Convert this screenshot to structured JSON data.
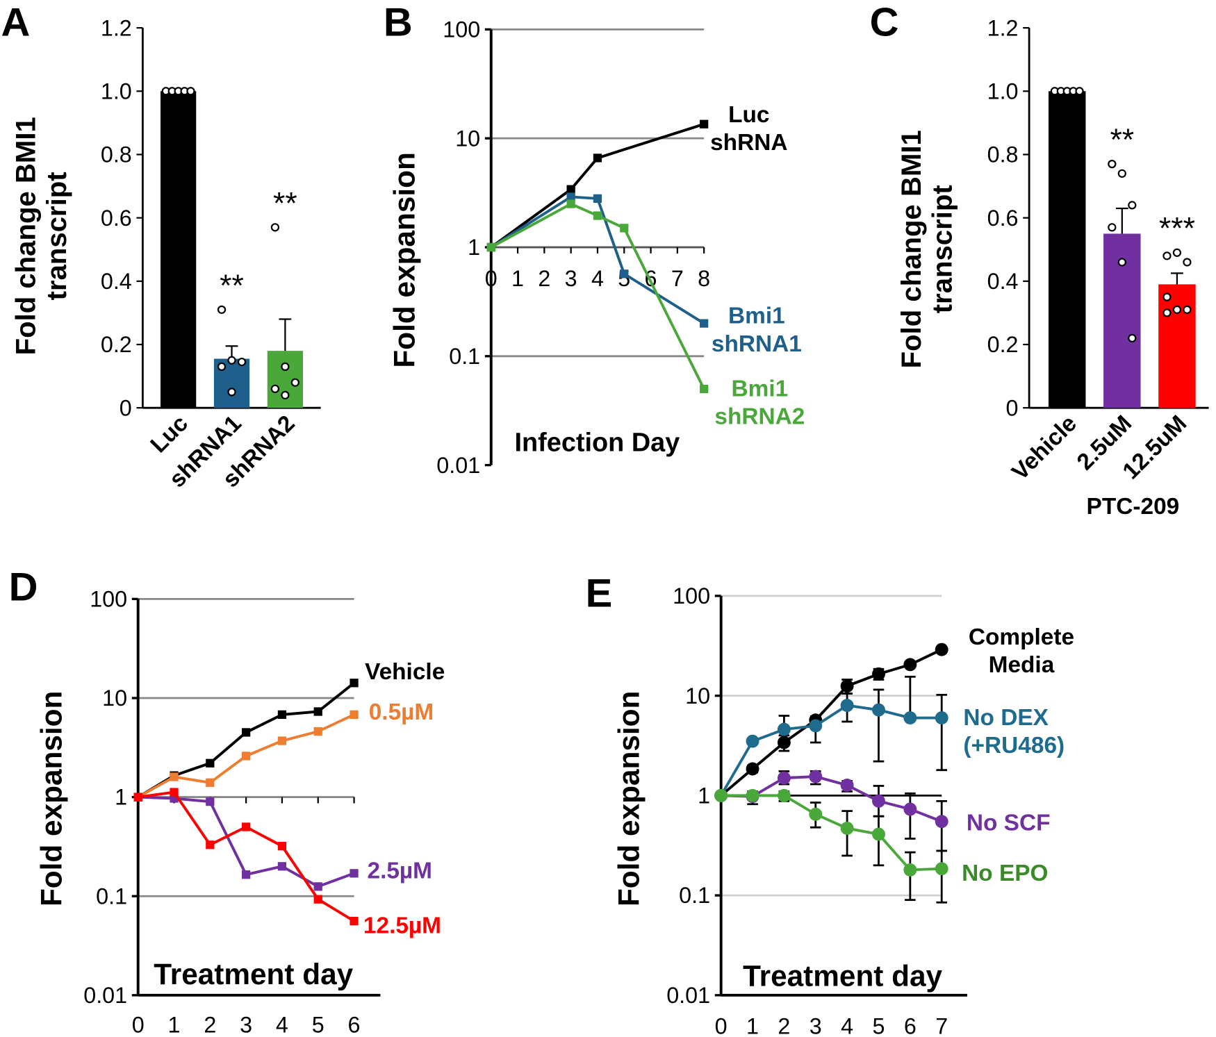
{
  "chart_data": [
    {
      "panel": "A",
      "type": "bar",
      "ylabel": "Fold change BMI1 transcript",
      "ylabel_lines": [
        "Fold change BMI1",
        "transcript"
      ],
      "yticks": [
        "0",
        "0.2",
        "0.4",
        "0.6",
        "0.8",
        "1.0",
        "1.2"
      ],
      "ylim": [
        0,
        1.2
      ],
      "categories": [
        "Luc",
        "shRNA1",
        "shRNA2"
      ],
      "values": [
        1.0,
        0.155,
        0.18
      ],
      "err_upper": [
        1.0,
        0.195,
        0.28
      ],
      "colors": [
        "#000000",
        "#1f5f8b",
        "#4aa83a"
      ],
      "points": [
        [
          1,
          1,
          1,
          1,
          1
        ],
        [
          0.31,
          0.15,
          0.145,
          0.13,
          0.05
        ],
        [
          0.57,
          0.13,
          0.08,
          0.06,
          0.04
        ]
      ],
      "significance": [
        "",
        "**",
        "**"
      ]
    },
    {
      "panel": "B",
      "type": "line",
      "yscale": "log",
      "ylabel": "Fold expansion",
      "xlabel": "Infection Day",
      "yticks": [
        "0.01",
        "0.1",
        "1",
        "10",
        "100"
      ],
      "ylim": [
        0.01,
        100
      ],
      "xticks": [
        "0",
        "1",
        "2",
        "3",
        "4",
        "5",
        "6",
        "7",
        "8"
      ],
      "xlim": [
        0,
        8
      ],
      "series": [
        {
          "name": "Luc shRNA",
          "label_lines": [
            "Luc",
            "shRNA"
          ],
          "color": "#000000",
          "x": [
            0,
            3,
            4,
            8
          ],
          "y": [
            1,
            3.4,
            6.6,
            13.5
          ]
        },
        {
          "name": "Bmi1 shRNA1",
          "label_lines": [
            "Bmi1",
            "shRNA1"
          ],
          "color": "#1f5f8b",
          "x": [
            0,
            3,
            4,
            5,
            8
          ],
          "y": [
            1,
            2.9,
            2.8,
            0.57,
            0.2
          ]
        },
        {
          "name": "Bmi1 shRNA2",
          "label_lines": [
            "Bmi1",
            "shRNA2"
          ],
          "color": "#4aa83a",
          "x": [
            0,
            3,
            4,
            5,
            8
          ],
          "y": [
            1,
            2.5,
            1.95,
            1.5,
            0.05
          ]
        }
      ]
    },
    {
      "panel": "C",
      "type": "bar",
      "ylabel": "Fold change BMI1 transcript",
      "ylabel_lines": [
        "Fold change BMI1",
        "transcript"
      ],
      "yticks": [
        "0",
        "0.2",
        "0.4",
        "0.6",
        "0.8",
        "1.0",
        "1.2"
      ],
      "ylim": [
        0,
        1.2
      ],
      "categories": [
        "Vehicle",
        "2.5uM",
        "12.5uM"
      ],
      "group_label": "PTC-209",
      "values": [
        1.0,
        0.55,
        0.39
      ],
      "err_upper": [
        1.0,
        0.63,
        0.425
      ],
      "colors": [
        "#000000",
        "#7030a0",
        "#ff0000"
      ],
      "points": [
        [
          1,
          1,
          1,
          1,
          1
        ],
        [
          0.77,
          0.74,
          0.64,
          0.57,
          0.46,
          0.22
        ],
        [
          0.48,
          0.49,
          0.46,
          0.35,
          0.31,
          0.31,
          0.3
        ]
      ],
      "significance": [
        "",
        "**",
        "***"
      ]
    },
    {
      "panel": "D",
      "type": "line",
      "yscale": "log",
      "ylabel": "Fold expansion",
      "xlabel": "Treatment day",
      "yticks": [
        "0.01",
        "0.1",
        "1",
        "10",
        "100"
      ],
      "ylim": [
        0.01,
        100
      ],
      "xticks": [
        "0",
        "1",
        "2",
        "3",
        "4",
        "5",
        "6"
      ],
      "xlim": [
        0,
        6
      ],
      "series": [
        {
          "name": "Vehicle",
          "label_lines": [
            "Vehicle"
          ],
          "color": "#000000",
          "x": [
            0,
            1,
            2,
            3,
            4,
            5,
            6
          ],
          "y": [
            1,
            1.65,
            2.2,
            4.5,
            6.8,
            7.3,
            14.2
          ]
        },
        {
          "name": "0.5µM",
          "label_lines": [
            "0.5µM"
          ],
          "color": "#ed7d31",
          "x": [
            0,
            1,
            2,
            3,
            4,
            5,
            6
          ],
          "y": [
            1,
            1.6,
            1.4,
            2.6,
            3.7,
            4.6,
            6.8
          ]
        },
        {
          "name": "2.5µM",
          "label_lines": [
            "2.5µM"
          ],
          "color": "#7030a0",
          "x": [
            0,
            1,
            2,
            3,
            4,
            5,
            6
          ],
          "y": [
            1,
            0.97,
            0.9,
            0.165,
            0.2,
            0.125,
            0.17
          ]
        },
        {
          "name": "12.5µM",
          "label_lines": [
            "12.5µM"
          ],
          "color": "#ff0000",
          "x": [
            0,
            1,
            2,
            3,
            4,
            5,
            6
          ],
          "y": [
            1,
            1.12,
            0.33,
            0.5,
            0.32,
            0.093,
            0.056
          ]
        }
      ]
    },
    {
      "panel": "E",
      "type": "line",
      "yscale": "log",
      "ylabel": "Fold expansion",
      "xlabel": "Treatment day",
      "yticks": [
        "0.01",
        "0.1",
        "1",
        "10",
        "100"
      ],
      "ylim": [
        0.01,
        100
      ],
      "xticks": [
        "0",
        "1",
        "2",
        "3",
        "4",
        "5",
        "6",
        "7"
      ],
      "xlim": [
        0,
        7
      ],
      "series": [
        {
          "name": "Complete Media",
          "label_lines": [
            "Complete",
            "Media"
          ],
          "color": "#000000",
          "x": [
            0,
            1,
            2,
            3,
            4,
            5,
            6,
            7
          ],
          "y": [
            1,
            1.85,
            3.4,
            5.7,
            12.5,
            16.5,
            20.5,
            29
          ],
          "err_low": [
            1,
            1.7,
            2.8,
            5.2,
            10.5,
            14.5,
            20.5,
            29
          ],
          "err_high": [
            1,
            2.0,
            4.0,
            6.2,
            14.5,
            18.5,
            20.5,
            29
          ]
        },
        {
          "name": "No DEX (+RU486)",
          "label_lines": [
            "No DEX",
            "(+RU486)"
          ],
          "color": "#1f6b8e",
          "x": [
            0,
            1,
            2,
            3,
            4,
            5,
            6,
            7
          ],
          "y": [
            1,
            3.5,
            4.6,
            5,
            8,
            7.2,
            6,
            6
          ],
          "err_low": [
            1,
            3.5,
            3.2,
            3.4,
            5.5,
            2.2,
            6,
            1.8
          ],
          "err_high": [
            1,
            3.5,
            6.3,
            6.2,
            10.5,
            11.5,
            15.5,
            10.2
          ]
        },
        {
          "name": "No SCF",
          "label_lines": [
            "No SCF"
          ],
          "color": "#7030a0",
          "x": [
            0,
            1,
            2,
            3,
            4,
            5,
            6,
            7
          ],
          "y": [
            1,
            0.98,
            1.5,
            1.55,
            1.27,
            0.88,
            0.73,
            0.55
          ],
          "err_low": [
            1,
            0.82,
            1.3,
            1.3,
            1.1,
            0.62,
            0.37,
            0.28
          ],
          "err_high": [
            1,
            1.1,
            1.75,
            1.75,
            1.4,
            1.25,
            1.05,
            0.88
          ]
        },
        {
          "name": "No EPO",
          "label_lines": [
            "No EPO"
          ],
          "color": "#4aa83a",
          "label_color": "#3a8a2a",
          "x": [
            0,
            1,
            2,
            3,
            4,
            5,
            6,
            7
          ],
          "y": [
            1,
            1,
            1.0,
            0.65,
            0.47,
            0.41,
            0.18,
            0.185
          ],
          "err_low": [
            1,
            1,
            0.88,
            0.48,
            0.25,
            0.2,
            0.09,
            0.085
          ],
          "err_high": [
            1,
            1,
            1.1,
            0.85,
            0.7,
            0.62,
            0.27,
            0.28
          ]
        }
      ]
    }
  ]
}
